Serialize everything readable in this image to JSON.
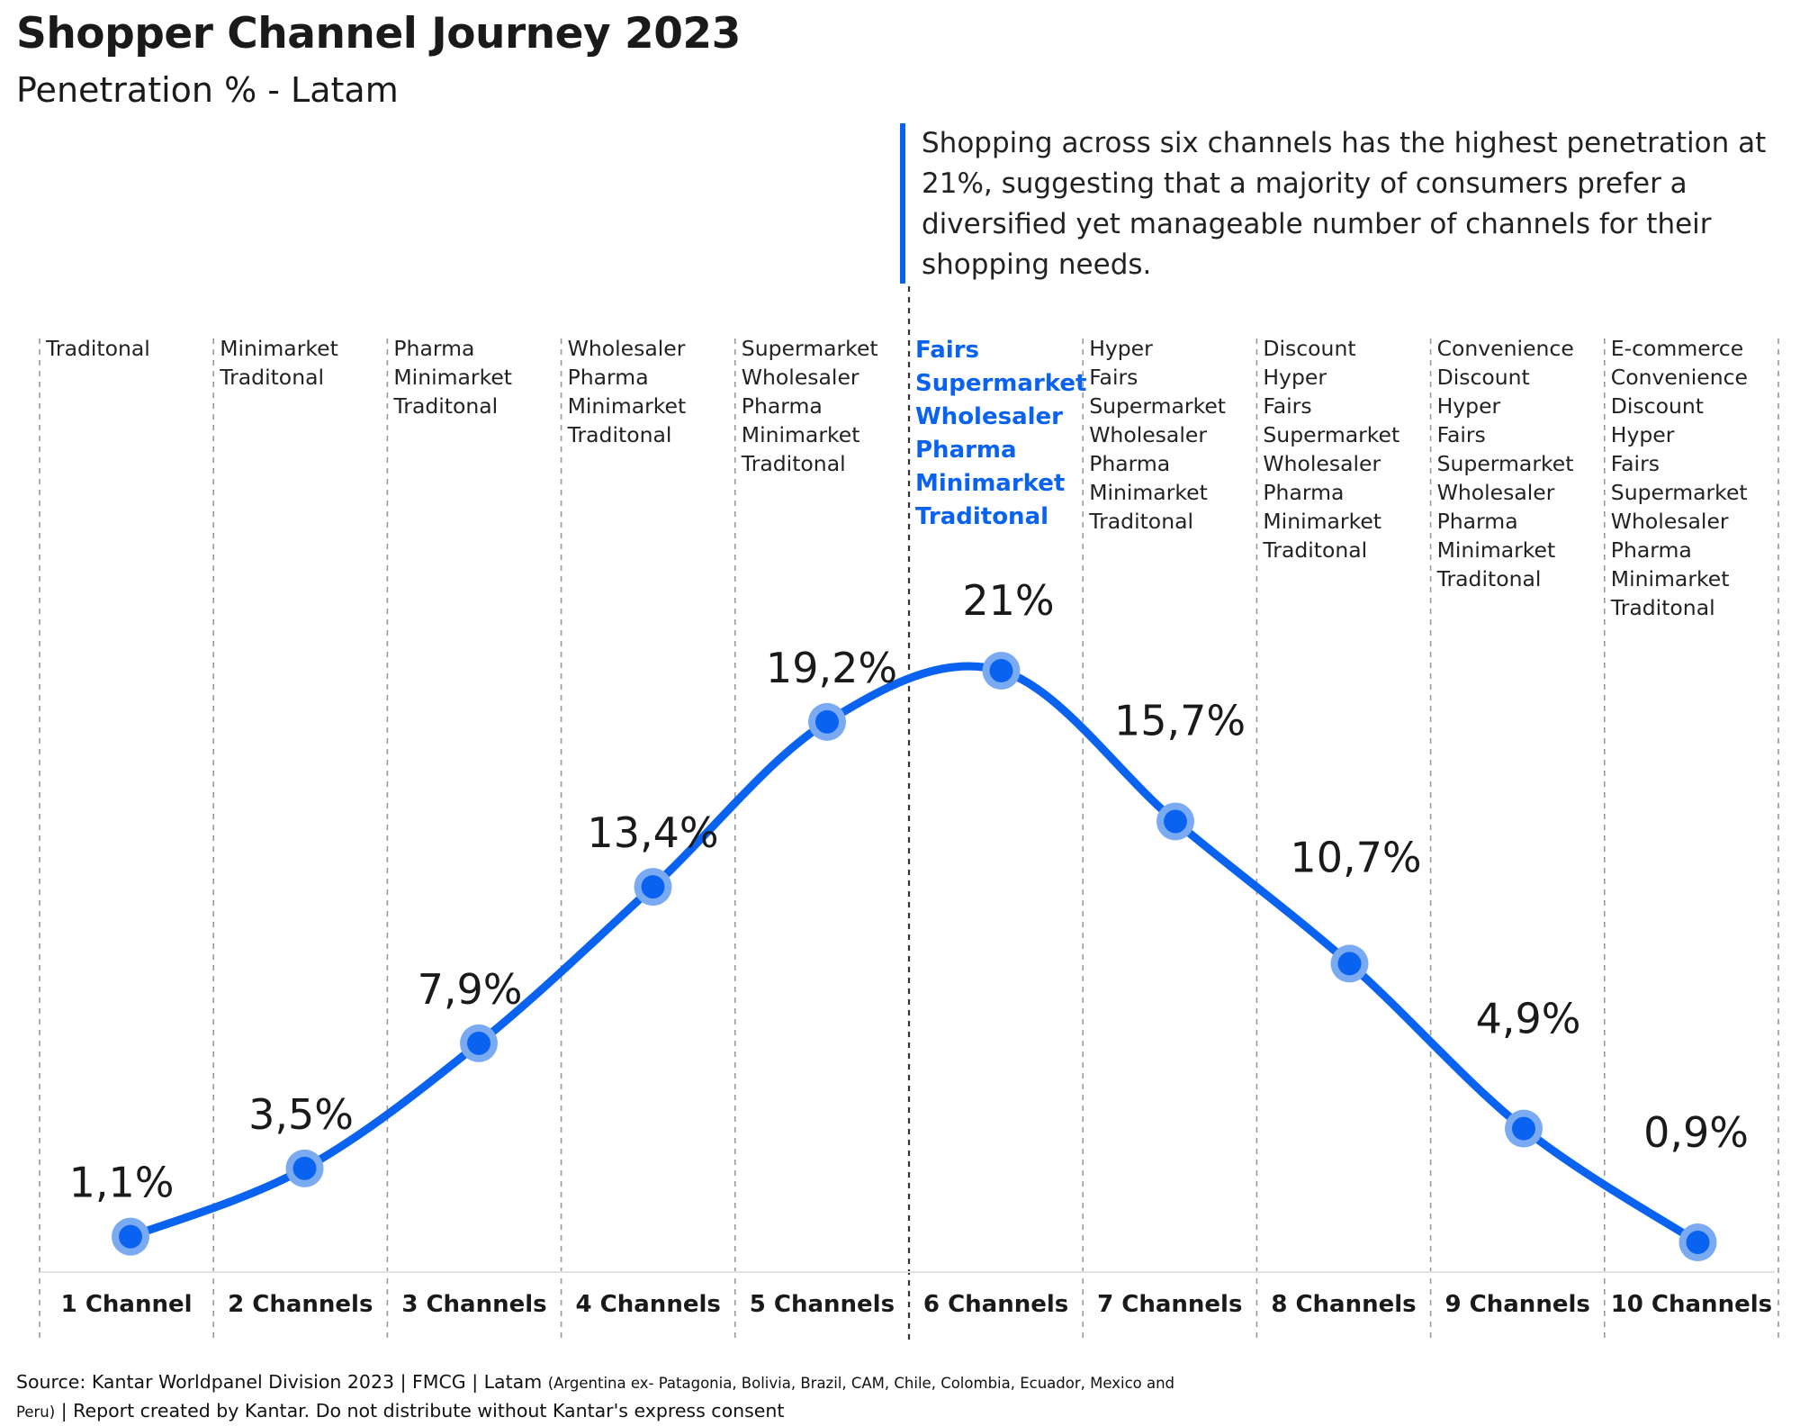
{
  "title": "Shopper Channel Journey 2023",
  "subtitle": "Penetration % - Latam",
  "callout": "Shopping across six channels has the highest penetration at 21%, suggesting that a majority of consumers prefer a diversified yet manageable number of channels for their shopping needs.",
  "source": {
    "main": "Source: Kantar Worldpanel Division 2023 | FMCG | Latam",
    "countries": "(Argentina ex- Patagonia, Bolivia, Brazil, CAM, Chile, Colombia, Ecuador, Mexico and Peru)",
    "tail": "| Report created by Kantar. Do not distribute without Kantar's express consent"
  },
  "colors": {
    "accent": "#0a63f0",
    "marker_halo": "#7aaaf2",
    "divider": "#9a9a9a",
    "highlight_divider": "#333333"
  },
  "chart_data": {
    "type": "line",
    "categories": [
      "1 Channel",
      "2 Channels",
      "3 Channels",
      "4 Channels",
      "5 Channels",
      "6 Channels",
      "7 Channels",
      "8 Channels",
      "9 Channels",
      "10 Channels"
    ],
    "values": [
      1.1,
      3.5,
      7.9,
      13.4,
      19.2,
      21,
      15.7,
      10.7,
      4.9,
      0.9
    ],
    "data_labels": [
      "1,1%",
      "3,5%",
      "7,9%",
      "13,4%",
      "19,2%",
      "21%",
      "15,7%",
      "10,7%",
      "4,9%",
      "0,9%"
    ],
    "channel_lists": [
      [
        "Traditonal"
      ],
      [
        "Minimarket",
        "Traditonal"
      ],
      [
        "Pharma",
        "Minimarket",
        "Traditonal"
      ],
      [
        "Wholesaler",
        "Pharma",
        "Minimarket",
        "Traditonal"
      ],
      [
        "Supermarket",
        "Wholesaler",
        "Pharma",
        "Minimarket",
        "Traditonal"
      ],
      [
        "Fairs",
        "Supermarket",
        "Wholesaler",
        "Pharma",
        "Minimarket",
        "Traditonal"
      ],
      [
        "Hyper",
        "Fairs",
        "Supermarket",
        "Wholesaler",
        "Pharma",
        "Minimarket",
        "Traditonal"
      ],
      [
        "Discount",
        "Hyper",
        "Fairs",
        "Supermarket",
        "Wholesaler",
        "Pharma",
        "Minimarket",
        "Traditonal"
      ],
      [
        "Convenience",
        "Discount",
        "Hyper",
        "Fairs",
        "Supermarket",
        "Wholesaler",
        "Pharma",
        "Minimarket",
        "Traditonal"
      ],
      [
        "E-commerce",
        "Convenience",
        "Discount",
        "Hyper",
        "Fairs",
        "Supermarket",
        "Wholesaler",
        "Pharma",
        "Minimarket",
        "Traditonal"
      ]
    ],
    "highlight_category": "6 Channels",
    "ylim": [
      0,
      25
    ],
    "xlabel": "",
    "ylabel": "",
    "grid": false,
    "legend": "none"
  }
}
